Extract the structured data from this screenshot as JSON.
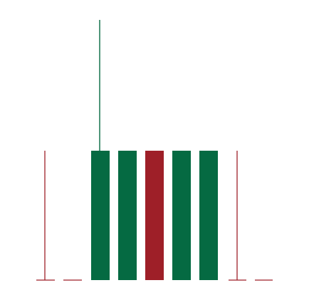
{
  "colors": {
    "background": "#ffffff",
    "green": "#056a42",
    "red": "#9e1f28"
  },
  "graphic": {
    "bars": [
      {
        "color": "green"
      },
      {
        "color": "green"
      },
      {
        "color": "red"
      },
      {
        "color": "green"
      },
      {
        "color": "green"
      }
    ],
    "spike": {
      "color": "green"
    },
    "left_bracket": {
      "color": "red"
    },
    "right_bracket": {
      "color": "red"
    }
  }
}
